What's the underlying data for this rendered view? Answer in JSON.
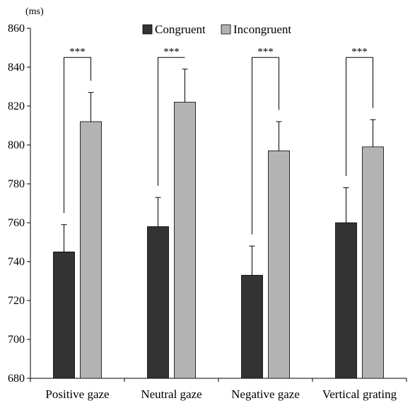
{
  "chart_data": {
    "type": "bar",
    "unit_label": "(ms)",
    "categories": [
      "Positive gaze",
      "Neutral gaze",
      "Negative gaze",
      "Vertical grating"
    ],
    "series": [
      {
        "name": "Congruent",
        "color": "#333333",
        "values": [
          745,
          758,
          733,
          760
        ],
        "errors": [
          14,
          15,
          15,
          18
        ]
      },
      {
        "name": "Incongruent",
        "color": "#b3b3b3",
        "values": [
          812,
          822,
          797,
          799
        ],
        "errors": [
          15,
          17,
          15,
          14
        ]
      }
    ],
    "ylim": [
      680,
      860
    ],
    "yticks": [
      680,
      700,
      720,
      740,
      760,
      780,
      800,
      820,
      840,
      860
    ],
    "significance": [
      "***",
      "***",
      "***",
      "***"
    ],
    "legend_position": "top-center",
    "grid": false
  }
}
